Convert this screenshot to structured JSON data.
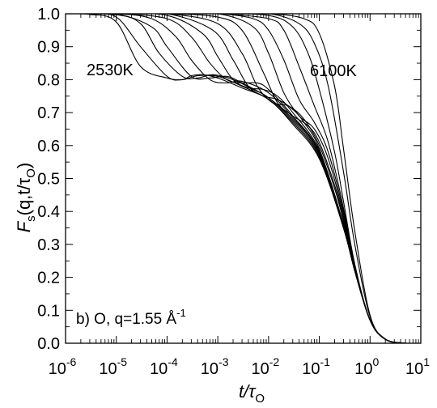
{
  "chart_data": {
    "type": "line",
    "xscale": "log",
    "xlim": [
      1e-06,
      10
    ],
    "ylim": [
      0.0,
      1.0
    ],
    "xticks": [
      {
        "value": 1e-06,
        "base": "10",
        "exp": "-6"
      },
      {
        "value": 1e-05,
        "base": "10",
        "exp": "-5"
      },
      {
        "value": 0.0001,
        "base": "10",
        "exp": "-4"
      },
      {
        "value": 0.001,
        "base": "10",
        "exp": "-3"
      },
      {
        "value": 0.01,
        "base": "10",
        "exp": "-2"
      },
      {
        "value": 0.1,
        "base": "10",
        "exp": "-1"
      },
      {
        "value": 1,
        "base": "10",
        "exp": "0"
      },
      {
        "value": 10,
        "base": "10",
        "exp": "1"
      }
    ],
    "yticks": [
      "0.0",
      "0.1",
      "0.2",
      "0.3",
      "0.4",
      "0.5",
      "0.6",
      "0.7",
      "0.8",
      "0.9",
      "1.0"
    ],
    "grid": false,
    "ylabel": {
      "main": "F",
      "sub1": "s",
      "args": "(q,t/τ",
      "sub2": "O",
      "close": ")"
    },
    "xlabel": {
      "main": "t/τ",
      "sub": "O"
    },
    "annotations": {
      "low_temp": "2530K",
      "high_temp": "6100K",
      "panel": {
        "prefix": "b) O, q=1.55 Å",
        "sup": "-1"
      }
    },
    "series": [
      {
        "temperature_index": 1,
        "x": [
          1e-06,
          3e-06,
          1e-05,
          3e-05,
          0.0001,
          0.0002,
          0.0003,
          0.0005,
          0.001,
          0.003,
          0.01,
          0.03,
          0.1,
          0.3,
          0.5,
          1,
          2,
          5,
          10
        ],
        "y": [
          1.0,
          0.998,
          0.975,
          0.84,
          0.805,
          0.8,
          0.812,
          0.815,
          0.805,
          0.775,
          0.74,
          0.665,
          0.56,
          0.35,
          0.22,
          0.07,
          0.012,
          0.0,
          0.0
        ]
      },
      {
        "temperature_index": 2,
        "x": [
          1e-06,
          3e-06,
          1e-05,
          3e-05,
          0.0001,
          0.0002,
          0.0004,
          0.001,
          0.003,
          0.01,
          0.03,
          0.1,
          0.3,
          0.5,
          1,
          2,
          5,
          10
        ],
        "y": [
          1.0,
          0.999,
          0.99,
          0.9,
          0.81,
          0.8,
          0.812,
          0.81,
          0.78,
          0.74,
          0.67,
          0.565,
          0.35,
          0.22,
          0.07,
          0.012,
          0.0,
          0.0
        ]
      },
      {
        "temperature_index": 3,
        "x": [
          1e-06,
          1e-05,
          3e-05,
          7e-05,
          0.0002,
          0.0004,
          0.0008,
          0.002,
          0.005,
          0.01,
          0.03,
          0.1,
          0.3,
          0.5,
          1,
          2,
          5,
          10
        ],
        "y": [
          1.0,
          0.997,
          0.97,
          0.88,
          0.81,
          0.805,
          0.815,
          0.8,
          0.77,
          0.745,
          0.675,
          0.57,
          0.35,
          0.22,
          0.07,
          0.012,
          0.0,
          0.0
        ]
      },
      {
        "temperature_index": 4,
        "x": [
          1e-06,
          1e-05,
          5e-05,
          0.0001,
          0.0003,
          0.0007,
          0.0015,
          0.003,
          0.01,
          0.03,
          0.1,
          0.3,
          0.5,
          1,
          2,
          5,
          10
        ],
        "y": [
          1.0,
          0.999,
          0.96,
          0.9,
          0.81,
          0.805,
          0.81,
          0.79,
          0.745,
          0.68,
          0.575,
          0.35,
          0.22,
          0.07,
          0.012,
          0.0,
          0.0
        ]
      },
      {
        "temperature_index": 5,
        "x": [
          1e-06,
          1e-05,
          5e-05,
          0.00015,
          0.0003,
          0.0007,
          0.0015,
          0.003,
          0.01,
          0.03,
          0.1,
          0.3,
          0.5,
          1,
          2,
          5,
          10
        ],
        "y": [
          1.0,
          1.0,
          0.985,
          0.93,
          0.86,
          0.8,
          0.79,
          0.795,
          0.76,
          0.685,
          0.58,
          0.355,
          0.22,
          0.07,
          0.012,
          0.0,
          0.0
        ]
      },
      {
        "temperature_index": 6,
        "x": [
          1e-06,
          1e-05,
          0.0001,
          0.0003,
          0.0007,
          0.0015,
          0.003,
          0.006,
          0.01,
          0.03,
          0.1,
          0.3,
          0.5,
          1,
          2,
          5,
          10
        ],
        "y": [
          1.0,
          1.0,
          0.985,
          0.93,
          0.85,
          0.8,
          0.79,
          0.79,
          0.77,
          0.69,
          0.58,
          0.355,
          0.22,
          0.07,
          0.012,
          0.0,
          0.0
        ]
      },
      {
        "temperature_index": 7,
        "x": [
          1e-06,
          1e-05,
          0.0001,
          0.0005,
          0.001,
          0.002,
          0.004,
          0.008,
          0.015,
          0.03,
          0.1,
          0.3,
          0.5,
          1,
          2,
          5,
          10
        ],
        "y": [
          1.0,
          1.0,
          0.995,
          0.94,
          0.87,
          0.8,
          0.775,
          0.77,
          0.75,
          0.7,
          0.585,
          0.36,
          0.22,
          0.07,
          0.012,
          0.0,
          0.0
        ]
      },
      {
        "temperature_index": 8,
        "x": [
          1e-06,
          1e-05,
          0.0001,
          0.0008,
          0.002,
          0.004,
          0.008,
          0.015,
          0.03,
          0.05,
          0.1,
          0.3,
          0.5,
          1,
          2,
          5,
          10
        ],
        "y": [
          1.0,
          1.0,
          1.0,
          0.95,
          0.86,
          0.78,
          0.75,
          0.74,
          0.71,
          0.67,
          0.59,
          0.36,
          0.22,
          0.07,
          0.012,
          0.0,
          0.0
        ]
      },
      {
        "temperature_index": 9,
        "x": [
          1e-06,
          1e-05,
          0.0001,
          0.001,
          0.003,
          0.006,
          0.012,
          0.025,
          0.05,
          0.1,
          0.2,
          0.3,
          0.5,
          1,
          2,
          5,
          10
        ],
        "y": [
          1.0,
          1.0,
          1.0,
          0.97,
          0.88,
          0.78,
          0.73,
          0.72,
          0.68,
          0.6,
          0.47,
          0.37,
          0.22,
          0.07,
          0.012,
          0.0,
          0.0
        ]
      },
      {
        "temperature_index": 10,
        "x": [
          1e-06,
          1e-05,
          0.0001,
          0.001,
          0.003,
          0.008,
          0.015,
          0.03,
          0.06,
          0.1,
          0.2,
          0.3,
          0.5,
          1,
          2,
          5,
          10
        ],
        "y": [
          1.0,
          1.0,
          1.0,
          0.99,
          0.95,
          0.82,
          0.73,
          0.69,
          0.66,
          0.61,
          0.48,
          0.38,
          0.225,
          0.07,
          0.012,
          0.0,
          0.0
        ]
      },
      {
        "temperature_index": 11,
        "x": [
          1e-06,
          1e-05,
          0.0001,
          0.001,
          0.005,
          0.01,
          0.02,
          0.04,
          0.08,
          0.15,
          0.3,
          0.5,
          1,
          2,
          5,
          10
        ],
        "y": [
          1.0,
          1.0,
          1.0,
          1.0,
          0.96,
          0.88,
          0.76,
          0.69,
          0.65,
          0.56,
          0.39,
          0.225,
          0.07,
          0.012,
          0.0,
          0.0
        ]
      },
      {
        "temperature_index": 12,
        "x": [
          1e-06,
          1e-05,
          0.0001,
          0.001,
          0.005,
          0.01,
          0.02,
          0.04,
          0.08,
          0.15,
          0.3,
          0.5,
          1,
          2,
          5,
          10
        ],
        "y": [
          1.0,
          1.0,
          1.0,
          1.0,
          0.985,
          0.95,
          0.86,
          0.74,
          0.67,
          0.58,
          0.4,
          0.23,
          0.07,
          0.012,
          0.0,
          0.0
        ]
      },
      {
        "temperature_index": 13,
        "x": [
          1e-06,
          1e-05,
          0.0001,
          0.001,
          0.01,
          0.02,
          0.04,
          0.08,
          0.15,
          0.3,
          0.5,
          1,
          2,
          5,
          10
        ],
        "y": [
          1.0,
          1.0,
          1.0,
          1.0,
          0.985,
          0.95,
          0.84,
          0.72,
          0.61,
          0.41,
          0.23,
          0.07,
          0.012,
          0.0,
          0.0
        ]
      },
      {
        "temperature_index": 14,
        "x": [
          1e-06,
          1e-05,
          0.0001,
          0.001,
          0.01,
          0.03,
          0.06,
          0.1,
          0.2,
          0.3,
          0.5,
          1,
          2,
          5,
          10
        ],
        "y": [
          1.0,
          1.0,
          1.0,
          1.0,
          0.995,
          0.96,
          0.88,
          0.77,
          0.58,
          0.43,
          0.24,
          0.07,
          0.012,
          0.0,
          0.0
        ]
      },
      {
        "temperature_index": 15,
        "x": [
          1e-06,
          1e-05,
          0.0001,
          0.001,
          0.01,
          0.04,
          0.08,
          0.15,
          0.3,
          0.5,
          1,
          2,
          5,
          10
        ],
        "y": [
          1.0,
          1.0,
          1.0,
          1.0,
          1.0,
          0.97,
          0.91,
          0.78,
          0.52,
          0.3,
          0.08,
          0.012,
          0.0,
          0.0
        ]
      },
      {
        "temperature_index": 16,
        "x": [
          1e-06,
          1e-05,
          0.0001,
          0.001,
          0.01,
          0.05,
          0.1,
          0.2,
          0.3,
          0.5,
          1,
          2,
          5,
          10
        ],
        "y": [
          1.0,
          1.0,
          1.0,
          1.0,
          1.0,
          0.985,
          0.94,
          0.78,
          0.59,
          0.34,
          0.085,
          0.013,
          0.0,
          0.0
        ]
      }
    ]
  }
}
